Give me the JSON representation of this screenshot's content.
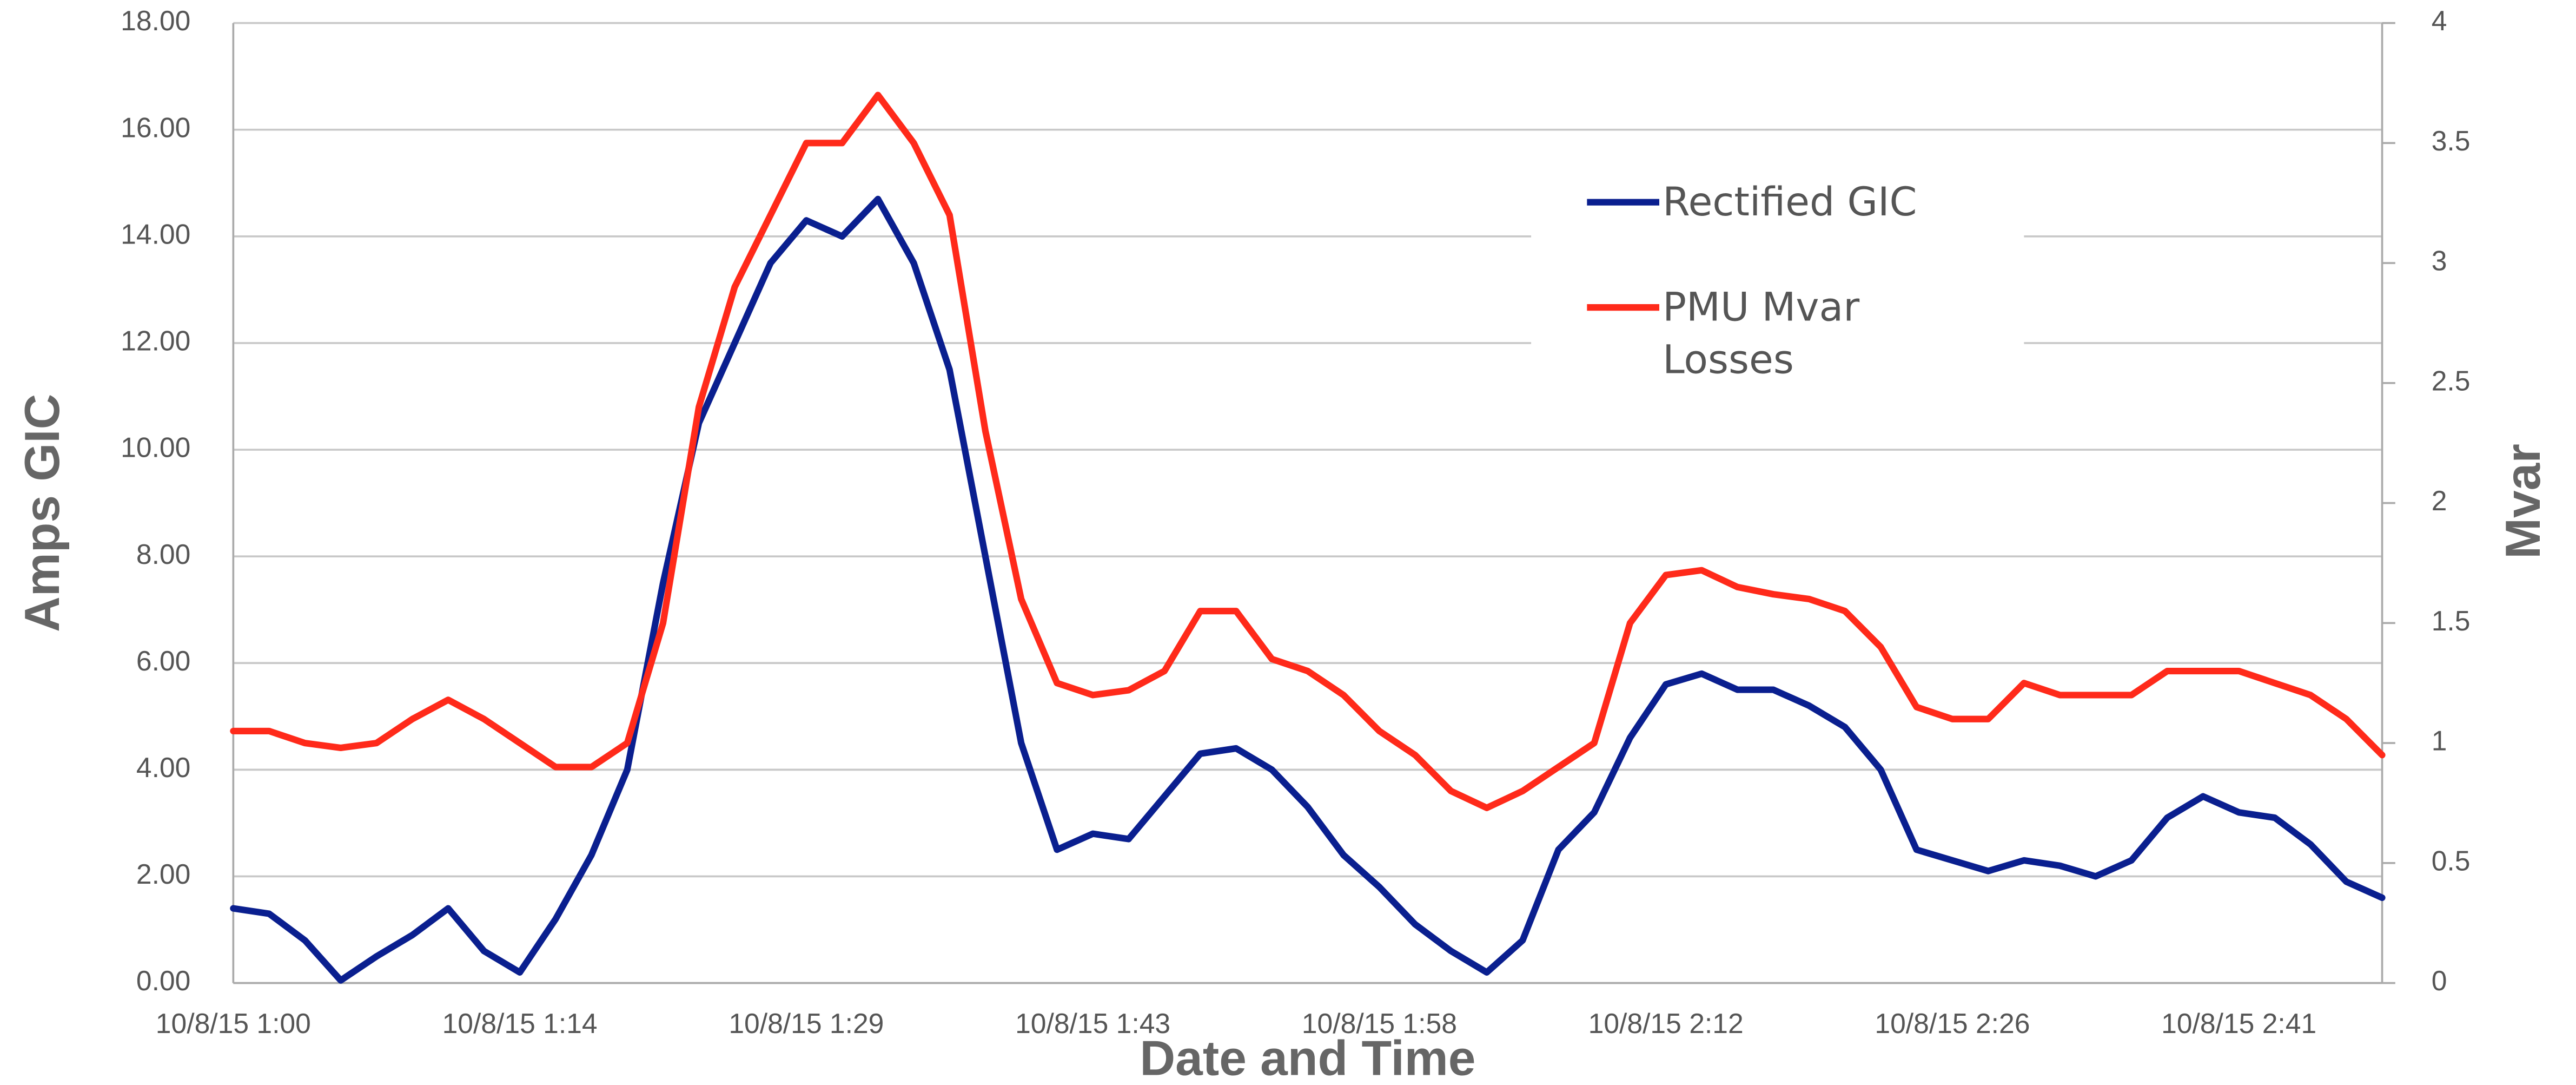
{
  "chart_data": {
    "type": "line",
    "xlabel": "Date and Time",
    "ylabel": "Amps GIC",
    "y2label": "Mvar",
    "categories": [
      "10/8/15 1:00",
      null,
      null,
      null,
      null,
      null,
      null,
      null,
      "10/8/15 1:14",
      null,
      null,
      null,
      null,
      null,
      null,
      null,
      "10/8/15 1:29",
      null,
      null,
      null,
      null,
      null,
      null,
      null,
      "10/8/15 1:43",
      null,
      null,
      null,
      null,
      null,
      null,
      null,
      "10/8/15 1:58",
      null,
      null,
      null,
      null,
      null,
      null,
      null,
      "10/8/15 2:12",
      null,
      null,
      null,
      null,
      null,
      null,
      null,
      "10/8/15 2:26",
      null,
      null,
      null,
      null,
      null,
      null,
      null,
      "10/8/15 2:41",
      null,
      null,
      null,
      null
    ],
    "series": [
      {
        "name": "Rectified GIC",
        "color": "#0a1f8f",
        "axis": "y",
        "values": [
          1.4,
          1.3,
          0.8,
          0.05,
          0.5,
          0.9,
          1.4,
          0.6,
          0.2,
          1.2,
          2.4,
          4.0,
          7.5,
          10.5,
          12.0,
          13.5,
          14.3,
          14.0,
          14.7,
          13.5,
          11.5,
          8.0,
          4.5,
          2.5,
          2.8,
          2.7,
          3.5,
          4.3,
          4.4,
          4.0,
          3.3,
          2.4,
          1.8,
          1.1,
          0.6,
          0.2,
          0.8,
          2.5,
          3.2,
          4.6,
          5.6,
          5.8,
          5.5,
          5.5,
          5.2,
          4.8,
          4.0,
          2.5,
          2.3,
          2.1,
          2.3,
          2.2,
          2.0,
          2.3,
          3.1,
          3.5,
          3.2,
          3.1,
          2.6,
          1.9,
          1.6
        ]
      },
      {
        "name": "PMU Mvar Losses",
        "color": "#ff2a1a",
        "axis": "y2",
        "values": [
          1.05,
          1.05,
          1.0,
          0.98,
          1.0,
          1.1,
          1.18,
          1.1,
          1.0,
          0.9,
          0.9,
          1.0,
          1.5,
          2.4,
          2.9,
          3.2,
          3.5,
          3.5,
          3.7,
          3.5,
          3.2,
          2.3,
          1.6,
          1.25,
          1.2,
          1.22,
          1.3,
          1.55,
          1.55,
          1.35,
          1.3,
          1.2,
          1.05,
          0.95,
          0.8,
          0.73,
          0.8,
          0.9,
          1.0,
          1.5,
          1.7,
          1.72,
          1.65,
          1.62,
          1.6,
          1.55,
          1.4,
          1.15,
          1.1,
          1.1,
          1.25,
          1.2,
          1.2,
          1.2,
          1.3,
          1.3,
          1.3,
          1.25,
          1.2,
          1.1,
          0.95
        ]
      }
    ],
    "ylim": [
      0,
      18
    ],
    "yticks": [
      {
        "value": 0,
        "label": "0.00"
      },
      {
        "value": 2,
        "label": "2.00"
      },
      {
        "value": 4,
        "label": "4.00"
      },
      {
        "value": 6,
        "label": "6.00"
      },
      {
        "value": 8,
        "label": "8.00"
      },
      {
        "value": 10,
        "label": "10.00"
      },
      {
        "value": 12,
        "label": "12.00"
      },
      {
        "value": 14,
        "label": "14.00"
      },
      {
        "value": 16,
        "label": "16.00"
      },
      {
        "value": 18,
        "label": "18.00"
      }
    ],
    "y2lim": [
      0,
      4
    ],
    "y2ticks": [
      0,
      0.5,
      1,
      1.5,
      2,
      2.5,
      3,
      3.5,
      4
    ],
    "grid": true
  }
}
